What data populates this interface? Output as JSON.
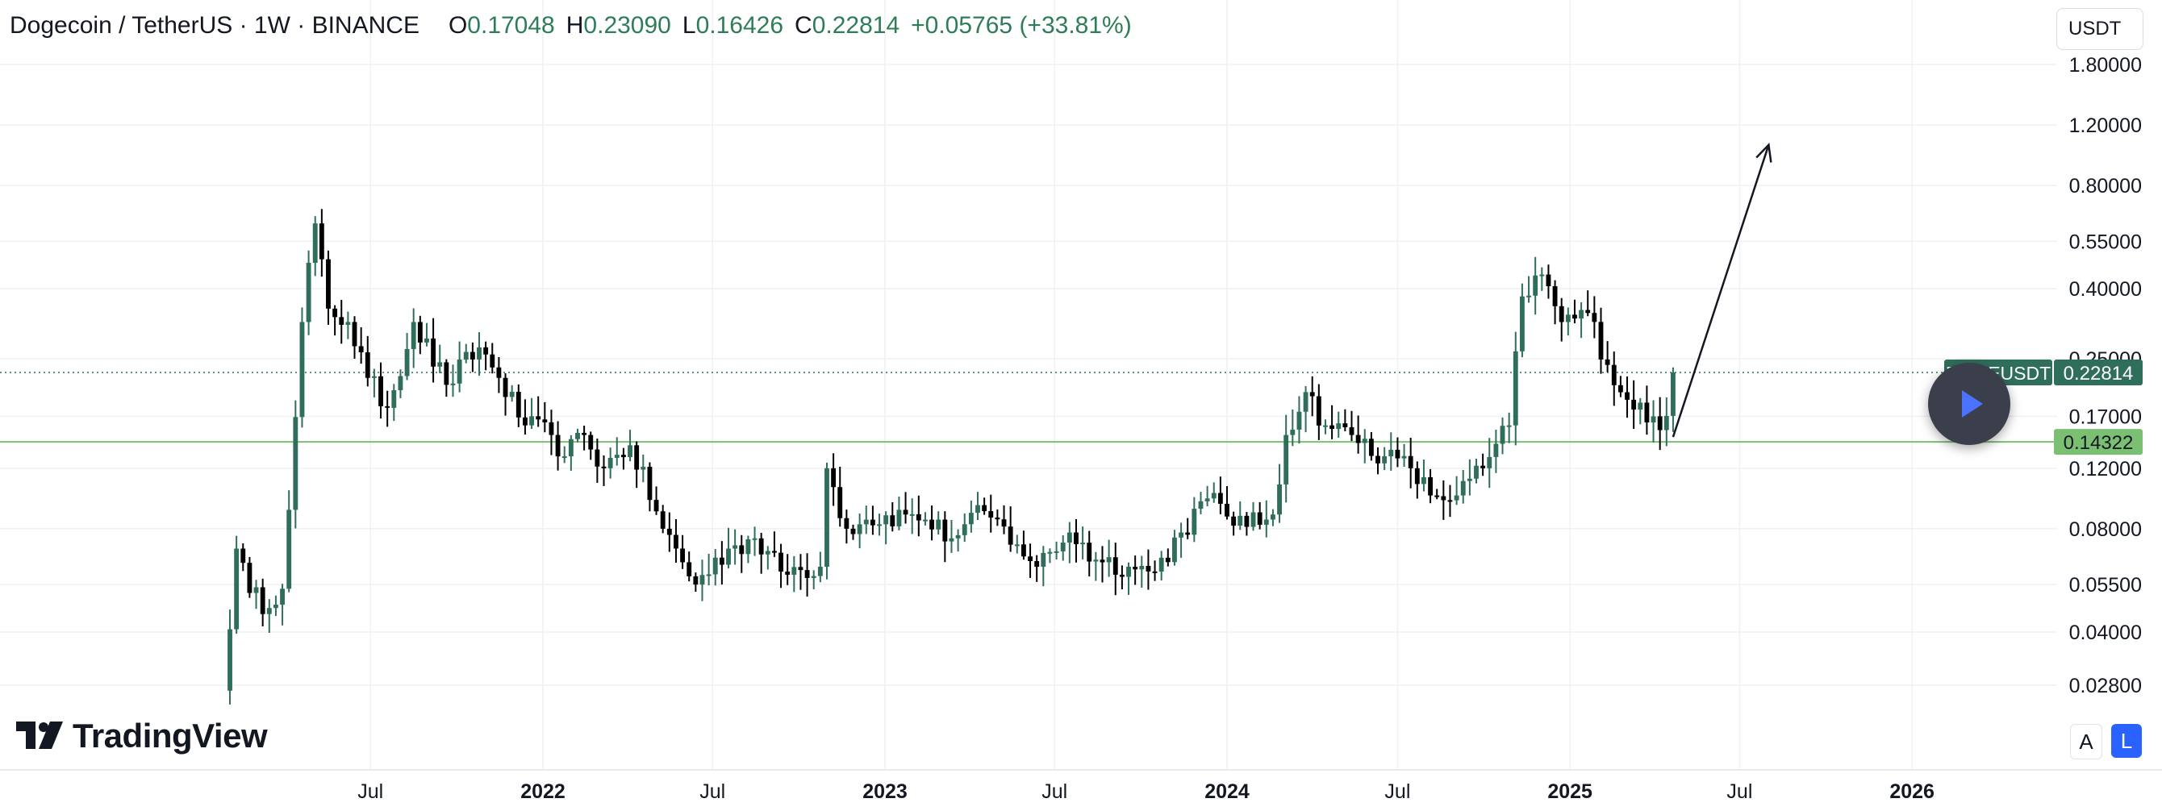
{
  "header": {
    "title": "Dogecoin / TetherUS · 1W · BINANCE",
    "o_label": "O",
    "o_value": "0.17048",
    "h_label": "H",
    "h_value": "0.23090",
    "l_label": "L",
    "l_value": "0.16426",
    "c_label": "C",
    "c_value": "0.22814",
    "change": "+0.05765 (+33.81%)"
  },
  "currency_button": "USDT",
  "branding": {
    "name": "TradingView"
  },
  "scale_buttons": {
    "auto": "A",
    "log": "L"
  },
  "colors": {
    "up": "#2f6e5c",
    "down": "#000000",
    "support": "#7bbf72",
    "price_tag": "#2f6e5c"
  },
  "icons": {
    "play": "play-icon",
    "logo": "tradingview-logo-icon"
  },
  "chart_data": {
    "type": "candlestick",
    "scale": "log",
    "symbol_label": "DOGEUSDT",
    "last_price": 0.22814,
    "support_level": 0.14322,
    "y_ticks": [
      1.8,
      1.2,
      0.8,
      0.55,
      0.4,
      0.25,
      0.17,
      0.12,
      0.08,
      0.055,
      0.04,
      0.028
    ],
    "y_tick_labels": [
      "1.80000",
      "1.20000",
      "0.80000",
      "0.55000",
      "0.40000",
      "0.25000",
      "0.17000",
      "0.12000",
      "0.08000",
      "0.05500",
      "0.04000",
      "0.02800"
    ],
    "x_ticks": [
      {
        "label": "Jul",
        "date": "2021-07-01",
        "bold": false
      },
      {
        "label": "2022",
        "date": "2022-01-01",
        "bold": true
      },
      {
        "label": "Jul",
        "date": "2022-07-01",
        "bold": false
      },
      {
        "label": "2023",
        "date": "2023-01-01",
        "bold": true
      },
      {
        "label": "Jul",
        "date": "2023-07-01",
        "bold": false
      },
      {
        "label": "2024",
        "date": "2024-01-01",
        "bold": true
      },
      {
        "label": "Jul",
        "date": "2024-07-01",
        "bold": false
      },
      {
        "label": "2025",
        "date": "2025-01-01",
        "bold": true
      },
      {
        "label": "Jul",
        "date": "2025-07-01",
        "bold": false
      },
      {
        "label": "2026",
        "date": "2026-01-01",
        "bold": true
      }
    ],
    "projection_arrow": {
      "from": {
        "date": "2025-04-21",
        "price": 0.148
      },
      "to": {
        "date": "2025-08-01",
        "price": 1.05
      }
    },
    "anchors": [
      [
        "2021-01-25",
        0.027
      ],
      [
        "2021-02-08",
        0.07
      ],
      [
        "2021-02-22",
        0.052
      ],
      [
        "2021-03-15",
        0.047
      ],
      [
        "2021-04-01",
        0.06
      ],
      [
        "2021-04-19",
        0.32
      ],
      [
        "2021-05-03",
        0.62
      ],
      [
        "2021-05-17",
        0.35
      ],
      [
        "2021-06-07",
        0.32
      ],
      [
        "2021-06-28",
        0.22
      ],
      [
        "2021-07-19",
        0.18
      ],
      [
        "2021-08-16",
        0.32
      ],
      [
        "2021-09-20",
        0.21
      ],
      [
        "2021-10-25",
        0.27
      ],
      [
        "2021-11-15",
        0.22
      ],
      [
        "2021-12-13",
        0.16
      ],
      [
        "2022-01-10",
        0.15
      ],
      [
        "2022-01-24",
        0.13
      ],
      [
        "2022-02-14",
        0.15
      ],
      [
        "2022-03-07",
        0.12
      ],
      [
        "2022-04-04",
        0.14
      ],
      [
        "2022-05-09",
        0.08
      ],
      [
        "2022-06-13",
        0.055
      ],
      [
        "2022-07-18",
        0.07
      ],
      [
        "2022-08-15",
        0.075
      ],
      [
        "2022-09-12",
        0.06
      ],
      [
        "2022-10-24",
        0.062
      ],
      [
        "2022-10-31",
        0.12
      ],
      [
        "2022-11-21",
        0.08
      ],
      [
        "2022-12-12",
        0.085
      ],
      [
        "2023-01-23",
        0.088
      ],
      [
        "2023-02-13",
        0.085
      ],
      [
        "2023-03-13",
        0.075
      ],
      [
        "2023-04-17",
        0.09
      ],
      [
        "2023-05-22",
        0.072
      ],
      [
        "2023-06-12",
        0.062
      ],
      [
        "2023-07-17",
        0.078
      ],
      [
        "2023-08-14",
        0.065
      ],
      [
        "2023-09-18",
        0.062
      ],
      [
        "2023-10-16",
        0.06
      ],
      [
        "2023-11-13",
        0.078
      ],
      [
        "2023-12-11",
        0.098
      ],
      [
        "2024-01-22",
        0.081
      ],
      [
        "2024-02-19",
        0.088
      ],
      [
        "2024-03-04",
        0.15
      ],
      [
        "2024-03-25",
        0.2
      ],
      [
        "2024-04-15",
        0.16
      ],
      [
        "2024-05-13",
        0.15
      ],
      [
        "2024-06-17",
        0.13
      ],
      [
        "2024-07-15",
        0.12
      ],
      [
        "2024-08-05",
        0.1
      ],
      [
        "2024-09-02",
        0.1
      ],
      [
        "2024-09-30",
        0.12
      ],
      [
        "2024-10-28",
        0.16
      ],
      [
        "2024-11-11",
        0.38
      ],
      [
        "2024-12-02",
        0.44
      ],
      [
        "2024-12-23",
        0.32
      ],
      [
        "2025-01-20",
        0.34
      ],
      [
        "2025-02-10",
        0.24
      ],
      [
        "2025-03-03",
        0.19
      ],
      [
        "2025-03-31",
        0.17
      ],
      [
        "2025-04-07",
        0.155
      ],
      [
        "2025-04-14",
        0.17048
      ],
      [
        "2025-04-21",
        0.22814
      ]
    ]
  }
}
